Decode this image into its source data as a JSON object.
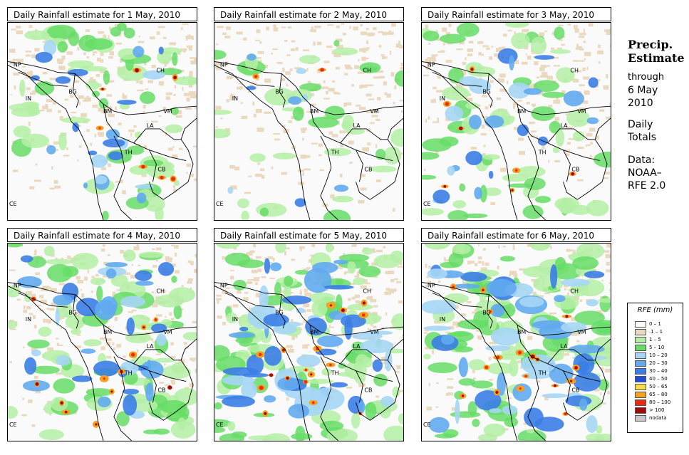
{
  "panels": [
    {
      "title": "Daily Rainfall estimate for  1 May, 2010",
      "intensity": 1
    },
    {
      "title": "Daily Rainfall estimate for  2 May, 2010",
      "intensity": 0
    },
    {
      "title": "Daily Rainfall estimate for  3 May, 2010",
      "intensity": 1
    },
    {
      "title": "Daily Rainfall estimate for  4 May, 2010",
      "intensity": 2
    },
    {
      "title": "Daily Rainfall estimate for  5 May, 2010",
      "intensity": 3
    },
    {
      "title": "Daily Rainfall estimate for  6 May, 2010",
      "intensity": 3
    }
  ],
  "region_labels": [
    "NP",
    "CH",
    "IN",
    "BG",
    "BM",
    "VM",
    "LA",
    "TH",
    "CB",
    "CE"
  ],
  "side": {
    "title1": "Precip.",
    "title2": "Estimate",
    "through": "through",
    "date1": "6 May",
    "date2": "2010",
    "daily1": "Daily",
    "daily2": "Totals",
    "data1": "Data:",
    "data2": "NOAA–",
    "data3": "RFE 2.0"
  },
  "legend": {
    "title": "RFE (mm)",
    "items": [
      {
        "label": "0 – 1",
        "color": "#fafafa"
      },
      {
        "label": ".1 – 1",
        "color": "#ead9bf"
      },
      {
        "label": "1 – 5",
        "color": "#b4efa5"
      },
      {
        "label": "5 – 10",
        "color": "#66dd66"
      },
      {
        "label": "10 – 20",
        "color": "#a6d6f5"
      },
      {
        "label": "20 – 30",
        "color": "#62aaf0"
      },
      {
        "label": "30 – 40",
        "color": "#3b7ee6"
      },
      {
        "label": "40 – 50",
        "color": "#1f4fd2"
      },
      {
        "label": "50 – 65",
        "color": "#f7dd4a"
      },
      {
        "label": "65 – 80",
        "color": "#f5a020"
      },
      {
        "label": "80 – 100",
        "color": "#e82c10"
      },
      {
        "label": "> 100",
        "color": "#a00a0a"
      },
      {
        "label": "nodata",
        "color": "#c8c8c8"
      }
    ]
  }
}
